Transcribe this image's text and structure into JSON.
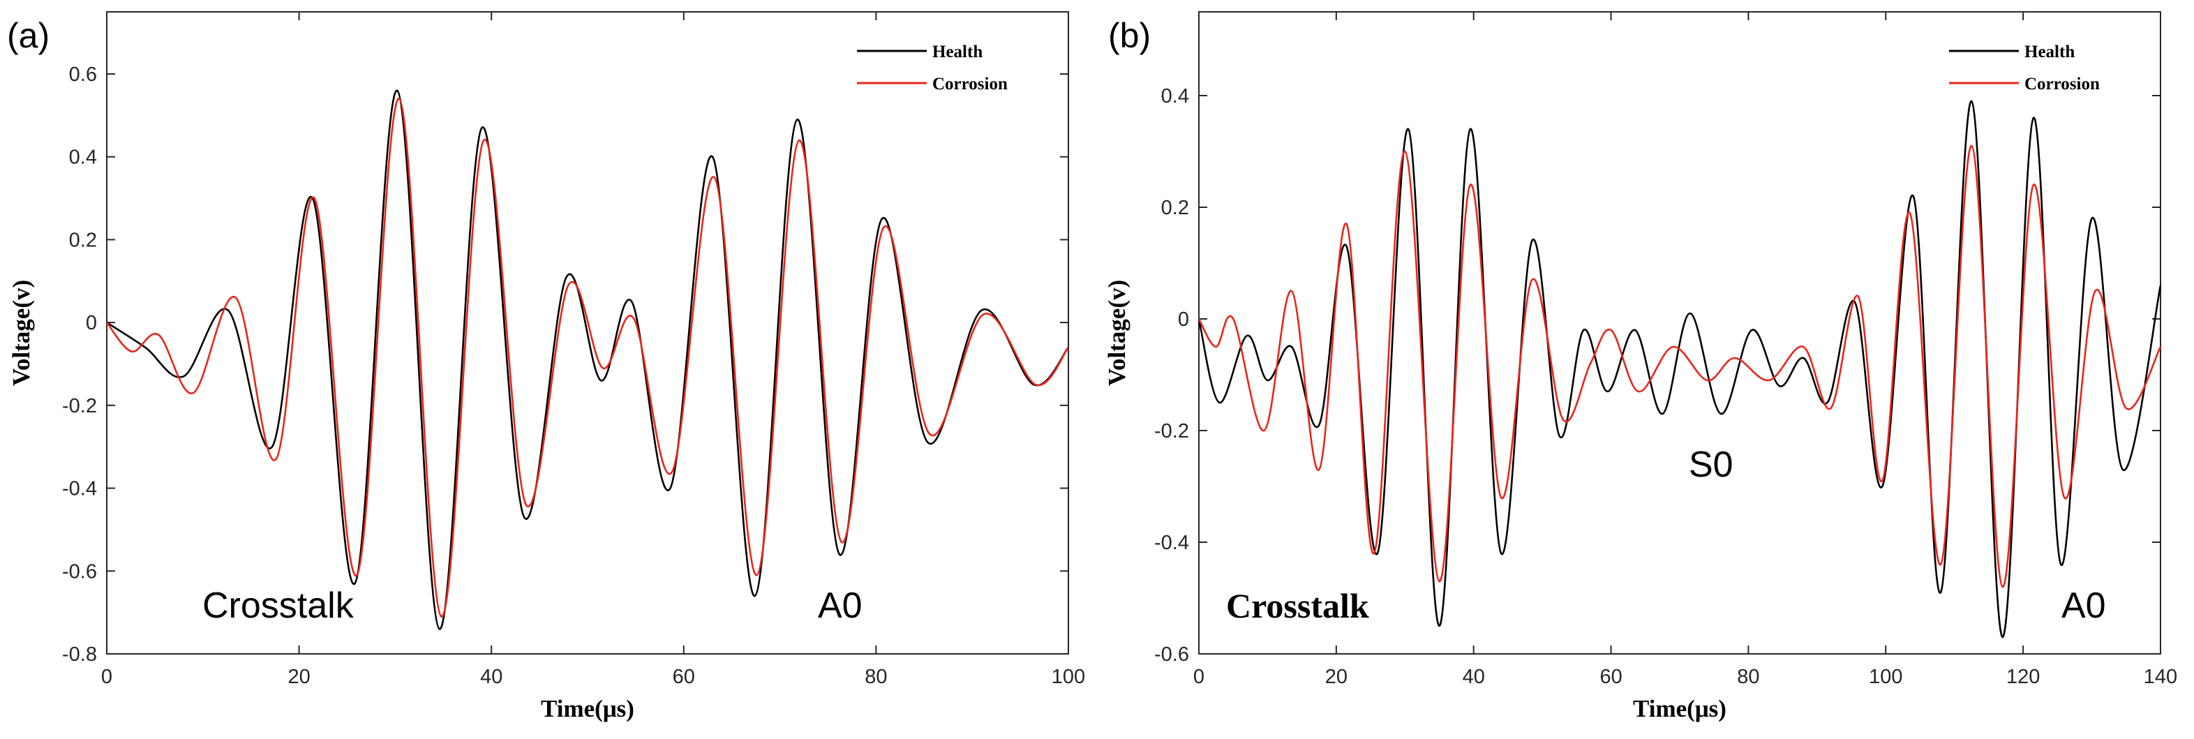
{
  "colors": {
    "health": "#000000",
    "corrosion": "#e8261c",
    "axis": "#262626"
  },
  "chart_data": [
    {
      "type": "line",
      "panel_label": "(a)",
      "title": "",
      "xlabel": "Time(μs)",
      "ylabel": "Voltage(v)",
      "xlim": [
        0,
        100
      ],
      "ylim": [
        -0.8,
        0.75
      ],
      "xticks": [
        0,
        20,
        40,
        60,
        80,
        100
      ],
      "yticks": [
        -0.8,
        -0.6,
        -0.4,
        -0.2,
        0,
        0.2,
        0.4,
        0.6
      ],
      "ytick_labels": [
        "-0.8",
        "-0.6",
        "-0.4",
        "-0.2",
        "0",
        "0.2",
        "0.4",
        "0.6"
      ],
      "xtick_labels": [
        "0",
        "20",
        "40",
        "60",
        "80",
        "100"
      ],
      "legend": [
        "Health",
        "Corrosion"
      ],
      "legend_position": "top-right",
      "annotations": [
        "Crosstalk",
        "A0"
      ],
      "series": [
        {
          "name": "Health",
          "points": [
            [
              0,
              0
            ],
            [
              4,
              -0.06
            ],
            [
              8,
              -0.13
            ],
            [
              12.6,
              0.03
            ],
            [
              17.2,
              -0.3
            ],
            [
              21.4,
              0.3
            ],
            [
              25.8,
              -0.63
            ],
            [
              30.2,
              0.56
            ],
            [
              34.6,
              -0.74
            ],
            [
              39,
              0.47
            ],
            [
              43.4,
              -0.47
            ],
            [
              47.8,
              0.11
            ],
            [
              51.4,
              -0.14
            ],
            [
              54.6,
              0.05
            ],
            [
              58.6,
              -0.4
            ],
            [
              63,
              0.4
            ],
            [
              67.4,
              -0.66
            ],
            [
              71.8,
              0.49
            ],
            [
              76.2,
              -0.56
            ],
            [
              80.6,
              0.25
            ],
            [
              85.4,
              -0.29
            ],
            [
              91,
              0.03
            ],
            [
              96.4,
              -0.15
            ],
            [
              100,
              -0.06
            ]
          ]
        },
        {
          "name": "Corrosion",
          "points": [
            [
              0,
              0
            ],
            [
              2.6,
              -0.07
            ],
            [
              5.4,
              -0.03
            ],
            [
              9,
              -0.17
            ],
            [
              13.4,
              0.06
            ],
            [
              17.6,
              -0.33
            ],
            [
              21.6,
              0.3
            ],
            [
              26,
              -0.61
            ],
            [
              30.4,
              0.54
            ],
            [
              34.8,
              -0.71
            ],
            [
              39.2,
              0.44
            ],
            [
              43.6,
              -0.44
            ],
            [
              48,
              0.09
            ],
            [
              51.6,
              -0.11
            ],
            [
              54.8,
              0.01
            ],
            [
              58.8,
              -0.36
            ],
            [
              63.2,
              0.35
            ],
            [
              67.6,
              -0.61
            ],
            [
              72,
              0.44
            ],
            [
              76.4,
              -0.53
            ],
            [
              80.8,
              0.23
            ],
            [
              85.6,
              -0.27
            ],
            [
              91.2,
              0.02
            ],
            [
              96.6,
              -0.15
            ],
            [
              100,
              -0.06
            ]
          ]
        }
      ]
    },
    {
      "type": "line",
      "panel_label": "(b)",
      "title": "",
      "xlabel": "Time(μs)",
      "ylabel": "Voltage(v)",
      "xlim": [
        0,
        140
      ],
      "ylim": [
        -0.6,
        0.55
      ],
      "xticks": [
        0,
        20,
        40,
        60,
        80,
        100,
        120,
        140
      ],
      "yticks": [
        -0.6,
        -0.4,
        -0.2,
        0,
        0.2,
        0.4
      ],
      "ytick_labels": [
        "-0.6",
        "-0.4",
        "-0.2",
        "0",
        "0.2",
        "0.4"
      ],
      "xtick_labels": [
        "0",
        "20",
        "40",
        "60",
        "80",
        "100",
        "120",
        "140"
      ],
      "legend": [
        "Health",
        "Corrosion"
      ],
      "legend_position": "top-right",
      "annotations": [
        "Crosstalk",
        "S0",
        "A0"
      ],
      "series": [
        {
          "name": "Health",
          "points": [
            [
              0,
              0
            ],
            [
              3,
              -0.15
            ],
            [
              7,
              -0.03
            ],
            [
              10,
              -0.11
            ],
            [
              13.5,
              -0.05
            ],
            [
              17.5,
              -0.19
            ],
            [
              21.5,
              0.13
            ],
            [
              26,
              -0.42
            ],
            [
              30.5,
              0.34
            ],
            [
              35,
              -0.55
            ],
            [
              39.5,
              0.34
            ],
            [
              44,
              -0.42
            ],
            [
              48.5,
              0.14
            ],
            [
              52.5,
              -0.21
            ],
            [
              56,
              -0.02
            ],
            [
              59.5,
              -0.13
            ],
            [
              63.5,
              -0.02
            ],
            [
              67.5,
              -0.17
            ],
            [
              71.5,
              0.01
            ],
            [
              76,
              -0.17
            ],
            [
              80.5,
              -0.02
            ],
            [
              84.5,
              -0.12
            ],
            [
              88,
              -0.07
            ],
            [
              91.5,
              -0.15
            ],
            [
              95.5,
              0.03
            ],
            [
              99.5,
              -0.3
            ],
            [
              104,
              0.22
            ],
            [
              108,
              -0.49
            ],
            [
              112.5,
              0.39
            ],
            [
              117,
              -0.57
            ],
            [
              121.5,
              0.36
            ],
            [
              125.5,
              -0.44
            ],
            [
              130,
              0.18
            ],
            [
              134.5,
              -0.27
            ],
            [
              140,
              0.06
            ]
          ]
        },
        {
          "name": "Corrosion",
          "points": [
            [
              0,
              0
            ],
            [
              2.5,
              -0.05
            ],
            [
              5,
              0
            ],
            [
              9.5,
              -0.2
            ],
            [
              13.5,
              0.05
            ],
            [
              17.5,
              -0.27
            ],
            [
              21.5,
              0.17
            ],
            [
              25.5,
              -0.42
            ],
            [
              30,
              0.3
            ],
            [
              35,
              -0.47
            ],
            [
              39.5,
              0.24
            ],
            [
              44,
              -0.32
            ],
            [
              48.5,
              0.07
            ],
            [
              53,
              -0.18
            ],
            [
              57,
              -0.08
            ],
            [
              60,
              -0.02
            ],
            [
              64,
              -0.13
            ],
            [
              69,
              -0.05
            ],
            [
              74,
              -0.11
            ],
            [
              78,
              -0.07
            ],
            [
              83,
              -0.11
            ],
            [
              88,
              -0.05
            ],
            [
              92,
              -0.16
            ],
            [
              96,
              0.04
            ],
            [
              99.5,
              -0.29
            ],
            [
              103.5,
              0.19
            ],
            [
              108,
              -0.44
            ],
            [
              112.5,
              0.31
            ],
            [
              117,
              -0.48
            ],
            [
              121.5,
              0.24
            ],
            [
              126,
              -0.32
            ],
            [
              130.5,
              0.05
            ],
            [
              135,
              -0.16
            ],
            [
              140,
              -0.05
            ]
          ]
        }
      ]
    }
  ]
}
